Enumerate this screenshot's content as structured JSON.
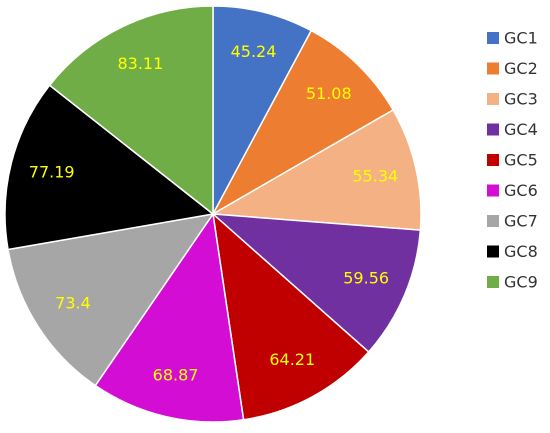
{
  "chart_data": {
    "type": "pie",
    "categories": [
      "GC1",
      "GC2",
      "GC3",
      "GC4",
      "GC5",
      "GC6",
      "GC7",
      "GC8",
      "GC9"
    ],
    "values": [
      45.24,
      51.08,
      55.34,
      59.56,
      64.21,
      68.87,
      73.4,
      77.19,
      83.11
    ],
    "colors": [
      "#4472c4",
      "#ed7d31",
      "#f4b183",
      "#7030a0",
      "#c00000",
      "#d40dd4",
      "#a6a6a6",
      "#000000",
      "#70ad47"
    ],
    "label_color": "#ffff00",
    "legend": "right"
  }
}
